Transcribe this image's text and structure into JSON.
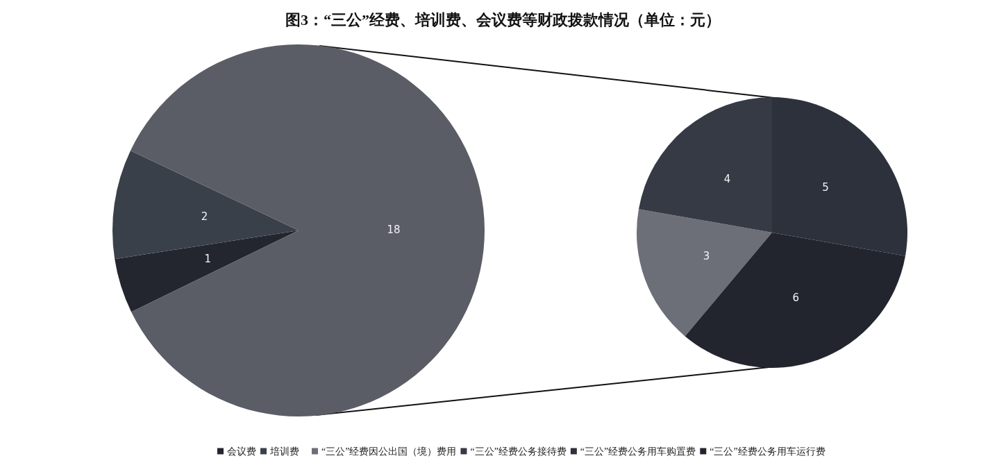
{
  "chart_data": [
    {
      "type": "pie",
      "title": "图3：“三公”经费、培训费、会议费等财政拨款情况（单位：元）",
      "categories": [
        "会议费",
        "培训费",
        null
      ],
      "values": [
        1,
        2,
        18
      ],
      "colors": [
        "#23262e",
        "#3a404a",
        "#5a5d66"
      ],
      "data_labels": true,
      "legend": "bottom"
    },
    {
      "type": "pie",
      "categories": [
        "“三公”经费因公出国（境）费用",
        "“三公”经费公务接待费",
        "“三公”经费公务用车购置费",
        "“三公”经费公务用车运行费"
      ],
      "values": [
        3,
        4,
        5,
        6
      ],
      "colors": [
        "#6c6f78",
        "#353a45",
        "#2c313c",
        "#22252e"
      ],
      "data_labels": true,
      "legend": "bottom"
    }
  ]
}
